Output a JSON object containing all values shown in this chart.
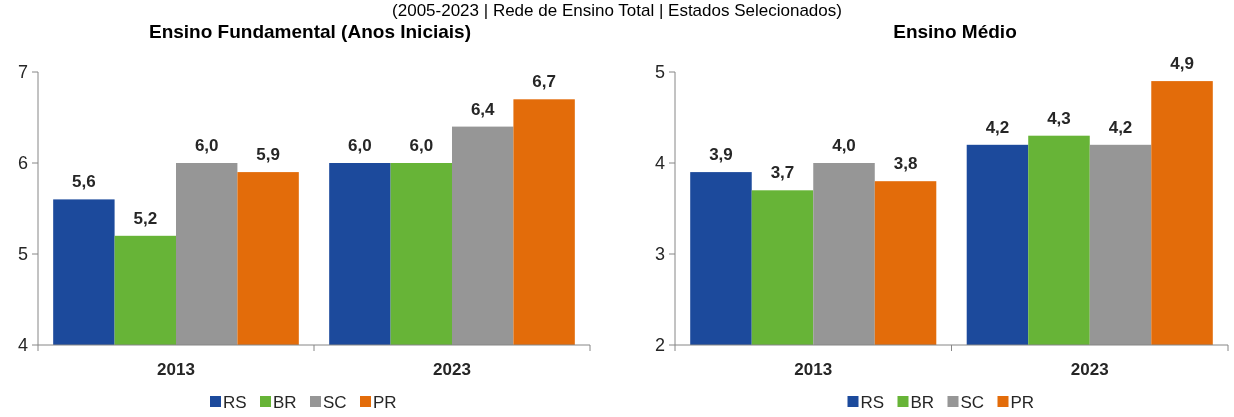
{
  "chart_data": [
    {
      "type": "bar",
      "subtitle": "(2005-2023 | Rede de Ensino Total | Estados Selecionados)",
      "title": "Ensino Fundamental (Anos Iniciais)",
      "categories": [
        "2013",
        "2023"
      ],
      "ylim": [
        4,
        7
      ],
      "yticks": [
        4,
        5,
        6,
        7
      ],
      "grid": false,
      "legend": "bottom",
      "series": [
        {
          "name": "RS",
          "color": "#1c4a9c",
          "values": [
            5.6,
            6.0
          ],
          "value_labels": [
            "5,6",
            "6,0"
          ]
        },
        {
          "name": "BR",
          "color": "#67b437",
          "values": [
            5.2,
            6.0
          ],
          "value_labels": [
            "5,2",
            "6,0"
          ]
        },
        {
          "name": "SC",
          "color": "#969696",
          "values": [
            6.0,
            6.4
          ],
          "value_labels": [
            "6,0",
            "6,4"
          ]
        },
        {
          "name": "PR",
          "color": "#e36c0a",
          "values": [
            5.9,
            6.7
          ],
          "value_labels": [
            "5,9",
            "6,7"
          ]
        }
      ]
    },
    {
      "type": "bar",
      "title": "Ensino Médio",
      "categories": [
        "2013",
        "2023"
      ],
      "ylim": [
        2,
        5
      ],
      "yticks": [
        2,
        3,
        4,
        5
      ],
      "grid": false,
      "legend": "bottom",
      "series": [
        {
          "name": "RS",
          "color": "#1c4a9c",
          "values": [
            3.9,
            4.2
          ],
          "value_labels": [
            "3,9",
            "4,2"
          ]
        },
        {
          "name": "BR",
          "color": "#67b437",
          "values": [
            3.7,
            4.3
          ],
          "value_labels": [
            "3,7",
            "4,3"
          ]
        },
        {
          "name": "SC",
          "color": "#969696",
          "values": [
            4.0,
            4.2
          ],
          "value_labels": [
            "4,0",
            "4,2"
          ]
        },
        {
          "name": "PR",
          "color": "#e36c0a",
          "values": [
            3.8,
            4.9
          ],
          "value_labels": [
            "3,8",
            "4,9"
          ]
        }
      ]
    }
  ]
}
